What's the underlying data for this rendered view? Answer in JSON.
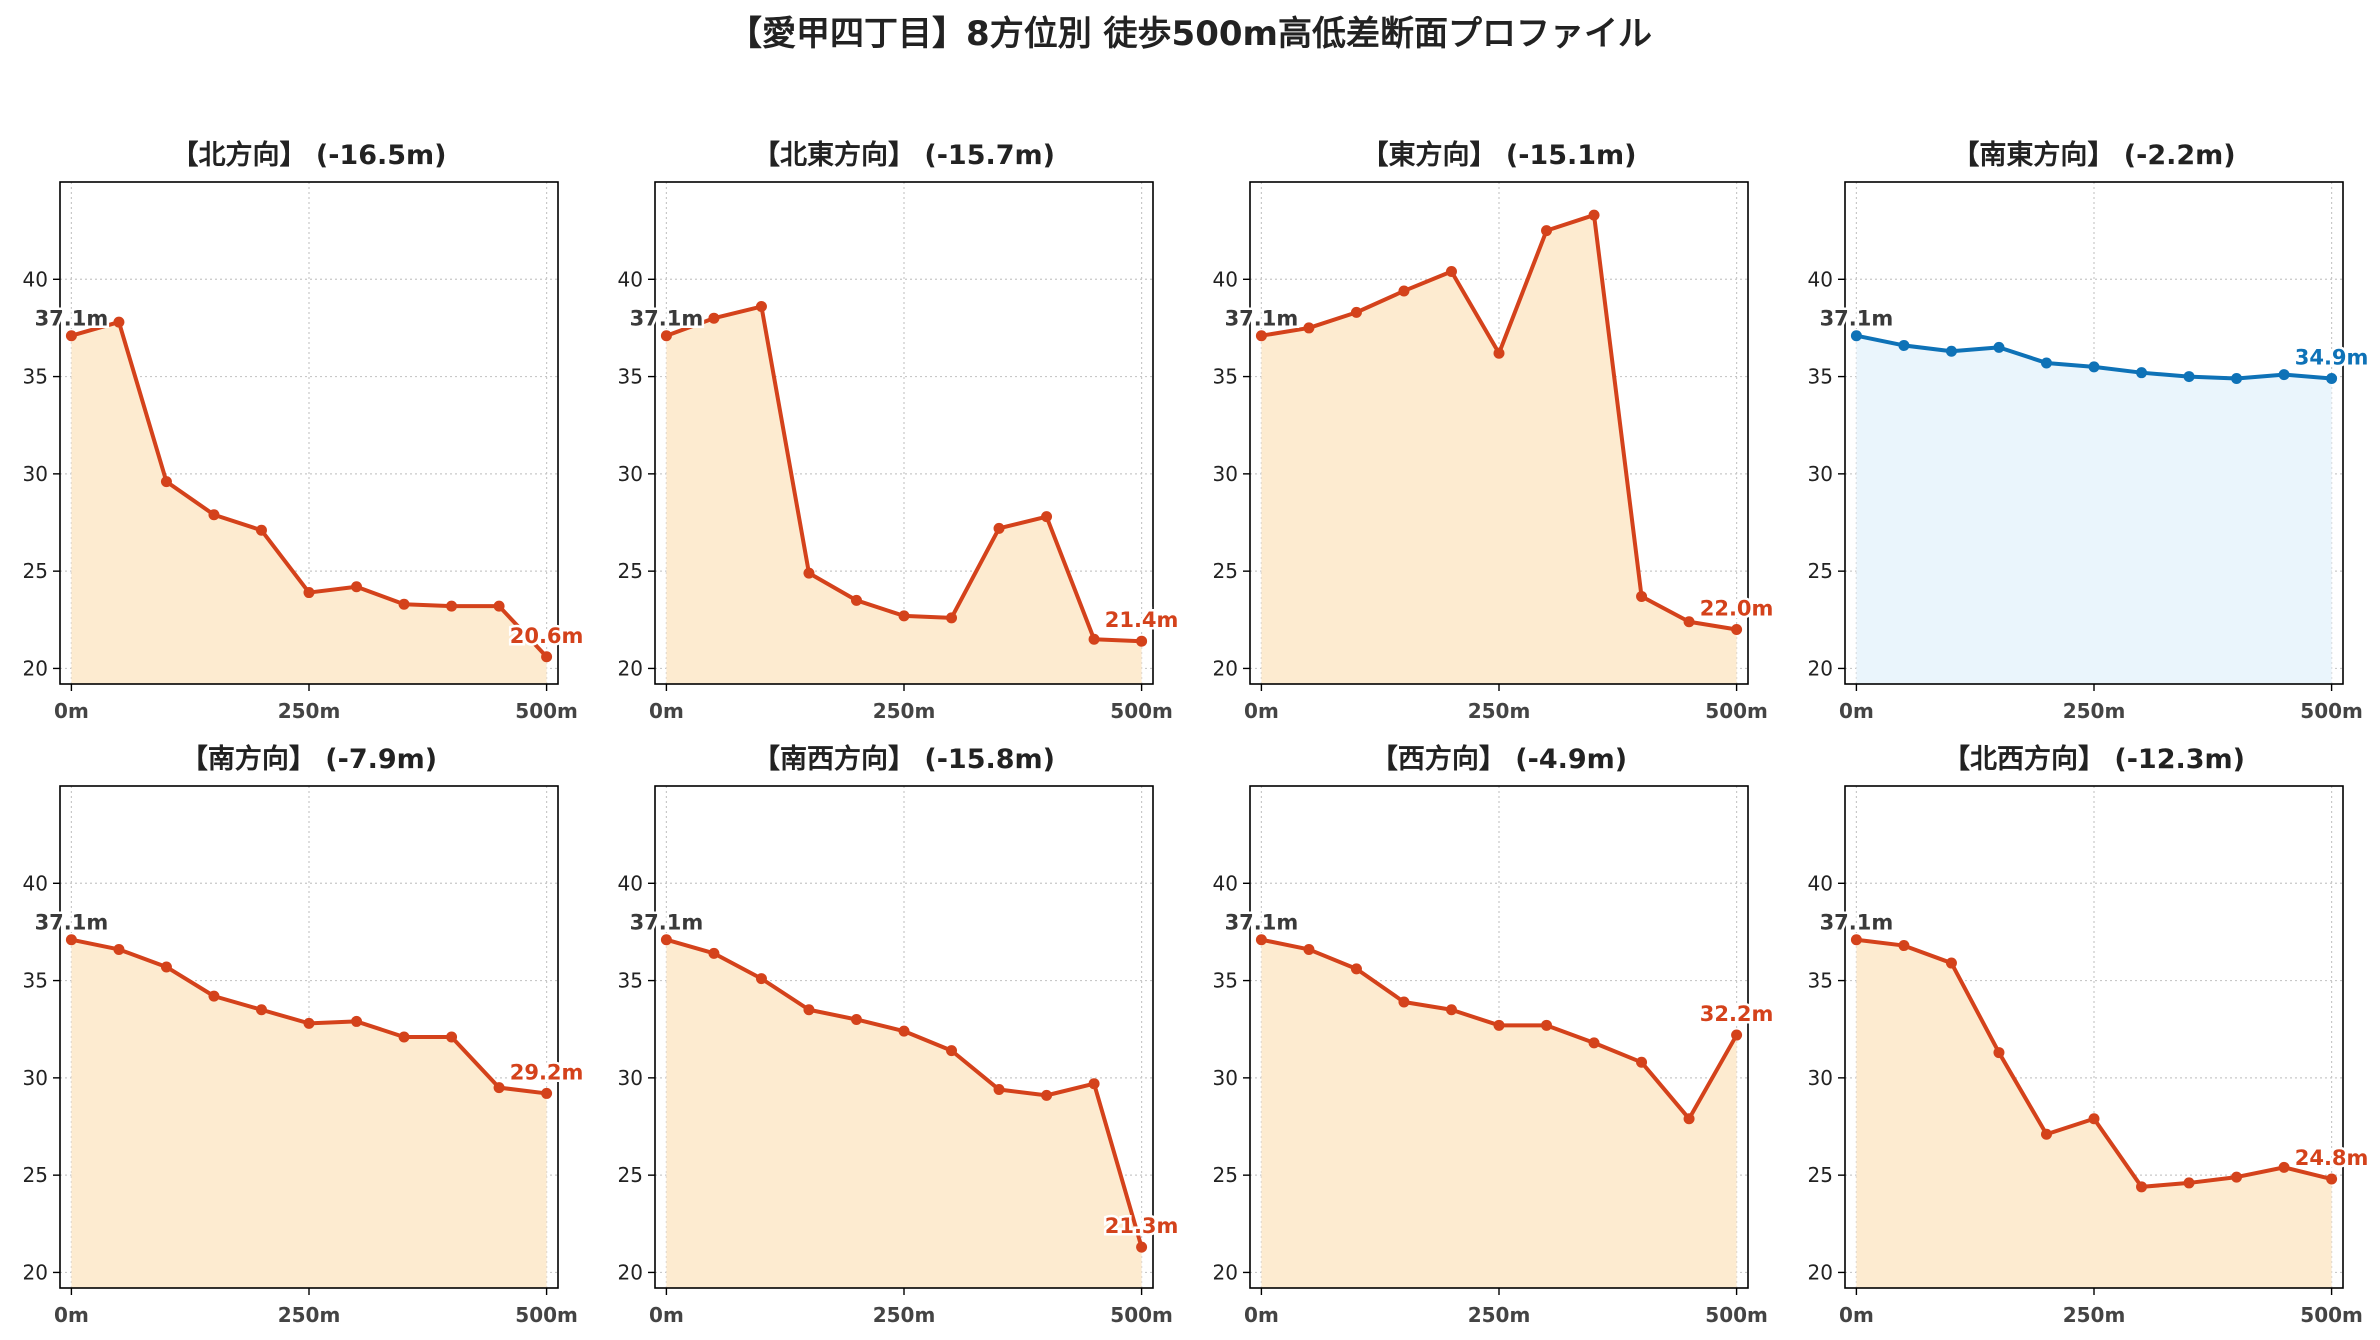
{
  "suptitle": "【愛甲四丁目】8方位別 徒歩500m高低差断面プロファイル",
  "colors": {
    "down_line": "#d4421b",
    "down_fill": "#fdebd0",
    "flat_line": "#0e72b7",
    "flat_fill": "#eaf5fc",
    "start_label": "#3a3a3a",
    "axis": "#000000",
    "grid": "#c8c8c8",
    "tick_label": "#222222",
    "x_tick_label": "#444444"
  },
  "chart_data": [
    {
      "type": "area",
      "title": "【北方向】 (-16.5m)",
      "x": [
        0,
        50,
        100,
        150,
        200,
        250,
        300,
        350,
        400,
        450,
        500
      ],
      "x_ticks": [
        "0m",
        "250m",
        "500m"
      ],
      "y_ticks": [
        20,
        25,
        30,
        35,
        40
      ],
      "ylim": [
        19.2,
        45
      ],
      "xlim": [
        -12,
        512
      ],
      "grid": true,
      "style": "down",
      "series": [
        {
          "values": [
            37.1,
            37.8,
            29.6,
            27.9,
            27.1,
            23.9,
            24.2,
            23.3,
            23.2,
            23.2,
            20.6
          ]
        }
      ],
      "annotations": {
        "start": "37.1m",
        "end": "20.6m"
      }
    },
    {
      "type": "area",
      "title": "【北東方向】 (-15.7m)",
      "x": [
        0,
        50,
        100,
        150,
        200,
        250,
        300,
        350,
        400,
        450,
        500
      ],
      "x_ticks": [
        "0m",
        "250m",
        "500m"
      ],
      "y_ticks": [
        20,
        25,
        30,
        35,
        40
      ],
      "ylim": [
        19.2,
        45
      ],
      "xlim": [
        -12,
        512
      ],
      "grid": true,
      "style": "down",
      "series": [
        {
          "values": [
            37.1,
            38.0,
            38.6,
            24.9,
            23.5,
            22.7,
            22.6,
            27.2,
            27.8,
            21.5,
            21.4
          ]
        }
      ],
      "annotations": {
        "start": "37.1m",
        "end": "21.4m"
      }
    },
    {
      "type": "area",
      "title": "【東方向】 (-15.1m)",
      "x": [
        0,
        50,
        100,
        150,
        200,
        250,
        300,
        350,
        400,
        450,
        500
      ],
      "x_ticks": [
        "0m",
        "250m",
        "500m"
      ],
      "y_ticks": [
        20,
        25,
        30,
        35,
        40
      ],
      "ylim": [
        19.2,
        45
      ],
      "xlim": [
        -12,
        512
      ],
      "grid": true,
      "style": "down",
      "series": [
        {
          "values": [
            37.1,
            37.5,
            38.3,
            39.4,
            40.4,
            36.2,
            42.5,
            43.3,
            23.7,
            22.4,
            22.0
          ]
        }
      ],
      "annotations": {
        "start": "37.1m",
        "end": "22.0m"
      }
    },
    {
      "type": "area",
      "title": "【南東方向】 (-2.2m)",
      "x": [
        0,
        50,
        100,
        150,
        200,
        250,
        300,
        350,
        400,
        450,
        500
      ],
      "x_ticks": [
        "0m",
        "250m",
        "500m"
      ],
      "y_ticks": [
        20,
        25,
        30,
        35,
        40
      ],
      "ylim": [
        19.2,
        45
      ],
      "xlim": [
        -12,
        512
      ],
      "grid": true,
      "style": "flat",
      "series": [
        {
          "values": [
            37.1,
            36.6,
            36.3,
            36.5,
            35.7,
            35.5,
            35.2,
            35.0,
            34.9,
            35.1,
            34.9
          ]
        }
      ],
      "annotations": {
        "start": "37.1m",
        "end": "34.9m"
      }
    },
    {
      "type": "area",
      "title": "【南方向】 (-7.9m)",
      "x": [
        0,
        50,
        100,
        150,
        200,
        250,
        300,
        350,
        400,
        450,
        500
      ],
      "x_ticks": [
        "0m",
        "250m",
        "500m"
      ],
      "y_ticks": [
        20,
        25,
        30,
        35,
        40
      ],
      "ylim": [
        19.2,
        45
      ],
      "xlim": [
        -12,
        512
      ],
      "grid": true,
      "style": "down",
      "series": [
        {
          "values": [
            37.1,
            36.6,
            35.7,
            34.2,
            33.5,
            32.8,
            32.9,
            32.1,
            32.1,
            29.5,
            29.2
          ]
        }
      ],
      "annotations": {
        "start": "37.1m",
        "end": "29.2m"
      }
    },
    {
      "type": "area",
      "title": "【南西方向】 (-15.8m)",
      "x": [
        0,
        50,
        100,
        150,
        200,
        250,
        300,
        350,
        400,
        450,
        500
      ],
      "x_ticks": [
        "0m",
        "250m",
        "500m"
      ],
      "y_ticks": [
        20,
        25,
        30,
        35,
        40
      ],
      "ylim": [
        19.2,
        45
      ],
      "xlim": [
        -12,
        512
      ],
      "grid": true,
      "style": "down",
      "series": [
        {
          "values": [
            37.1,
            36.4,
            35.1,
            33.5,
            33.0,
            32.4,
            31.4,
            29.4,
            29.1,
            29.7,
            21.3
          ]
        }
      ],
      "annotations": {
        "start": "37.1m",
        "end": "21.3m"
      }
    },
    {
      "type": "area",
      "title": "【西方向】 (-4.9m)",
      "x": [
        0,
        50,
        100,
        150,
        200,
        250,
        300,
        350,
        400,
        450,
        500
      ],
      "x_ticks": [
        "0m",
        "250m",
        "500m"
      ],
      "y_ticks": [
        20,
        25,
        30,
        35,
        40
      ],
      "ylim": [
        19.2,
        45
      ],
      "xlim": [
        -12,
        512
      ],
      "grid": true,
      "style": "down",
      "series": [
        {
          "values": [
            37.1,
            36.6,
            35.6,
            33.9,
            33.5,
            32.7,
            32.7,
            31.8,
            30.8,
            27.9,
            32.2
          ]
        }
      ],
      "annotations": {
        "start": "37.1m",
        "end": "32.2m"
      }
    },
    {
      "type": "area",
      "title": "【北西方向】 (-12.3m)",
      "x": [
        0,
        50,
        100,
        150,
        200,
        250,
        300,
        350,
        400,
        450,
        500
      ],
      "x_ticks": [
        "0m",
        "250m",
        "500m"
      ],
      "y_ticks": [
        20,
        25,
        30,
        35,
        40
      ],
      "ylim": [
        19.2,
        45
      ],
      "xlim": [
        -12,
        512
      ],
      "grid": true,
      "style": "down",
      "series": [
        {
          "values": [
            37.1,
            36.8,
            35.9,
            31.3,
            27.1,
            27.9,
            24.4,
            24.6,
            24.9,
            25.4,
            24.8
          ]
        }
      ],
      "annotations": {
        "start": "37.1m",
        "end": "24.8m"
      }
    }
  ]
}
